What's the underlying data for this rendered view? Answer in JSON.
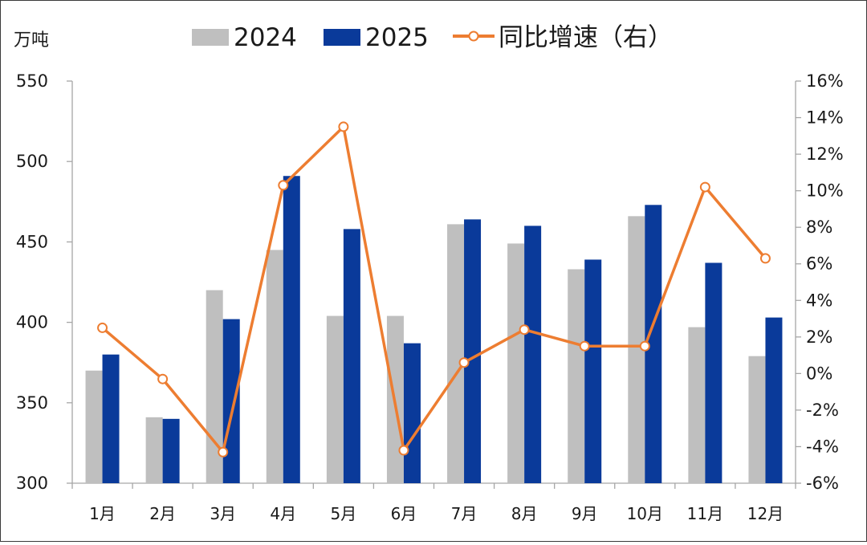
{
  "chart_data": {
    "type": "bar+line",
    "title": "",
    "left_axis_unit": "万吨",
    "categories": [
      "1月",
      "2月",
      "3月",
      "4月",
      "5月",
      "6月",
      "7月",
      "8月",
      "9月",
      "10月",
      "11月",
      "12月"
    ],
    "series": [
      {
        "name": "2024",
        "type": "bar",
        "axis": "left",
        "color": "#bfbfbf",
        "values": [
          370,
          341,
          420,
          445,
          404,
          404,
          461,
          449,
          433,
          466,
          397,
          379
        ]
      },
      {
        "name": "2025",
        "type": "bar",
        "axis": "left",
        "color": "#0a3a9a",
        "values": [
          380,
          340,
          402,
          491,
          458,
          387,
          464,
          460,
          439,
          473,
          437,
          403
        ]
      },
      {
        "name": "同比增速（右）",
        "type": "line",
        "axis": "right",
        "color": "#ed7d31",
        "values": [
          2.5,
          -0.3,
          -4.3,
          10.3,
          13.5,
          -4.2,
          0.6,
          2.4,
          1.5,
          1.5,
          10.2,
          6.3
        ]
      }
    ],
    "y_left": {
      "min": 300,
      "max": 550,
      "step": 50,
      "ticks": [
        "300",
        "350",
        "400",
        "450",
        "500",
        "550"
      ]
    },
    "y_right": {
      "min": -6,
      "max": 16,
      "step": 2,
      "ticks": [
        "-6%",
        "-4%",
        "-2%",
        "0%",
        "2%",
        "4%",
        "6%",
        "8%",
        "10%",
        "12%",
        "14%",
        "16%"
      ]
    },
    "legend_position": "top-center",
    "grid": false
  }
}
